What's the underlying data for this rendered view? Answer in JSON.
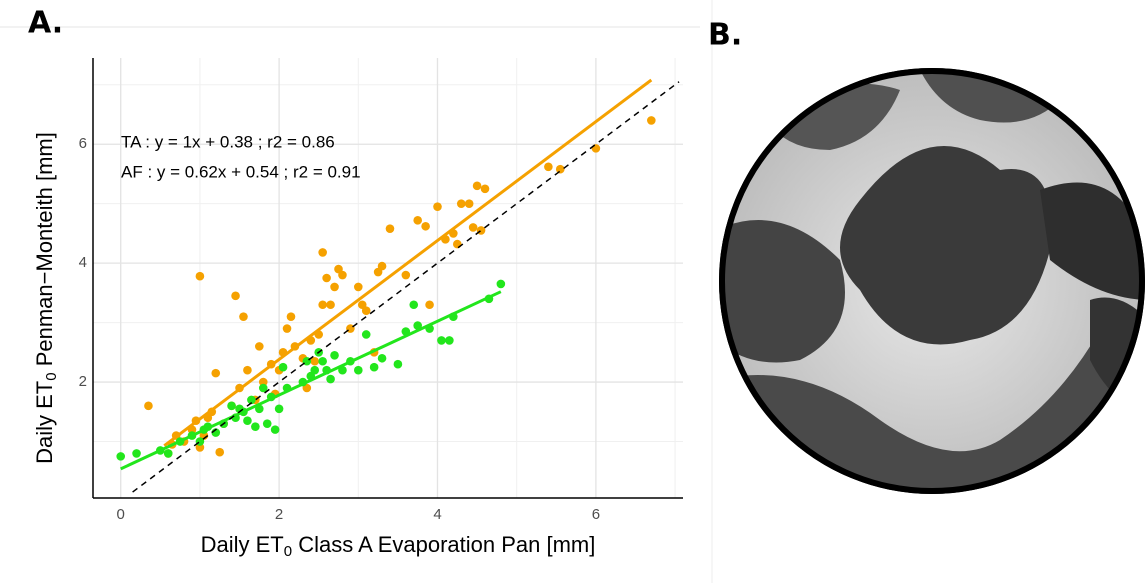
{
  "chart_data": {
    "type": "scatter",
    "panel_label": "A.",
    "x_label": {
      "prefix": "Daily ET",
      "sub": "0",
      "suffix": " Class A Evaporation Pan [mm]"
    },
    "y_label": {
      "prefix": "Daily ET",
      "sub": "0",
      "suffix": " Penman−Monteith [mm]"
    },
    "annotations": [
      "TA : y = 1x + 0.38 ; r2 = 0.86",
      "AF : y = 0.62x + 0.54 ; r2 = 0.91"
    ],
    "xlim": [
      -0.35,
      7.1
    ],
    "ylim": [
      0.05,
      7.45
    ],
    "xticks": [
      0,
      2,
      4,
      6
    ],
    "yticks": [
      2,
      4,
      6
    ],
    "xminor": [
      1,
      3,
      5,
      7
    ],
    "yminor": [
      1,
      3,
      5,
      7
    ],
    "grid": true,
    "series": [
      {
        "name": "TA",
        "color": "#f5a100",
        "x": [
          0.35,
          0.6,
          0.65,
          0.7,
          0.8,
          0.9,
          0.95,
          1.0,
          1.0,
          1.05,
          1.1,
          1.15,
          1.2,
          1.25,
          1.3,
          1.4,
          1.45,
          1.5,
          1.55,
          1.6,
          1.7,
          1.75,
          1.8,
          1.9,
          1.95,
          2.0,
          2.05,
          2.1,
          2.15,
          2.2,
          2.3,
          2.35,
          2.4,
          2.45,
          2.5,
          2.55,
          2.55,
          2.6,
          2.65,
          2.7,
          2.75,
          2.8,
          2.9,
          3.0,
          3.05,
          3.1,
          3.2,
          3.25,
          3.3,
          3.4,
          3.6,
          3.75,
          3.85,
          3.9,
          4.0,
          4.1,
          4.2,
          4.25,
          4.3,
          4.4,
          4.45,
          4.5,
          4.55,
          4.6,
          5.4,
          5.55,
          6.0,
          6.7
        ],
        "values": [
          1.6,
          0.8,
          0.95,
          1.1,
          1.0,
          1.2,
          1.35,
          0.9,
          3.78,
          1.1,
          1.4,
          1.5,
          2.15,
          0.82,
          1.3,
          1.6,
          3.45,
          1.9,
          3.1,
          2.2,
          1.7,
          2.6,
          2.0,
          2.3,
          1.8,
          2.2,
          2.5,
          2.9,
          3.1,
          2.6,
          2.4,
          1.9,
          2.7,
          2.35,
          2.8,
          4.18,
          3.3,
          3.75,
          3.3,
          3.6,
          3.9,
          3.8,
          2.9,
          3.6,
          3.3,
          3.2,
          2.5,
          3.85,
          3.95,
          4.58,
          3.8,
          4.72,
          4.62,
          3.3,
          4.95,
          4.4,
          4.5,
          4.32,
          5.0,
          5.0,
          4.6,
          5.3,
          4.55,
          5.25,
          5.62,
          5.58,
          5.93,
          6.4
        ]
      },
      {
        "name": "AF",
        "color": "#22e61c",
        "x": [
          0.0,
          0.2,
          0.5,
          0.6,
          0.75,
          0.9,
          1.0,
          1.05,
          1.1,
          1.2,
          1.3,
          1.4,
          1.45,
          1.5,
          1.55,
          1.6,
          1.65,
          1.7,
          1.75,
          1.8,
          1.85,
          1.9,
          1.95,
          2.0,
          2.05,
          2.1,
          2.3,
          2.35,
          2.4,
          2.45,
          2.5,
          2.55,
          2.6,
          2.65,
          2.7,
          2.8,
          2.9,
          3.0,
          3.1,
          3.2,
          3.3,
          3.5,
          3.6,
          3.7,
          3.75,
          3.9,
          4.05,
          4.15,
          4.2,
          4.65,
          4.8
        ],
        "values": [
          0.75,
          0.8,
          0.85,
          0.8,
          1.0,
          1.1,
          1.0,
          1.2,
          1.25,
          1.15,
          1.3,
          1.6,
          1.4,
          1.55,
          1.5,
          1.35,
          1.7,
          1.25,
          1.55,
          1.9,
          1.3,
          1.75,
          1.2,
          1.55,
          2.25,
          1.9,
          2.0,
          2.35,
          2.1,
          2.2,
          2.5,
          2.35,
          2.2,
          2.05,
          2.45,
          2.2,
          2.35,
          2.2,
          2.8,
          2.25,
          2.4,
          2.3,
          2.85,
          3.3,
          2.95,
          2.9,
          2.7,
          2.7,
          3.1,
          3.4,
          3.65
        ]
      }
    ],
    "lines": [
      {
        "color": "#f5a100",
        "dashed": false,
        "x": [
          0.55,
          6.7
        ],
        "values": [
          0.93,
          7.08
        ]
      },
      {
        "color": "#22e61c",
        "dashed": false,
        "x": [
          0.0,
          4.8
        ],
        "values": [
          0.54,
          3.52
        ]
      },
      {
        "color": "#000000",
        "dashed": true,
        "x": [
          0.15,
          7.05
        ],
        "values": [
          0.15,
          7.05
        ]
      }
    ]
  },
  "panel_b": {
    "label": "B."
  }
}
